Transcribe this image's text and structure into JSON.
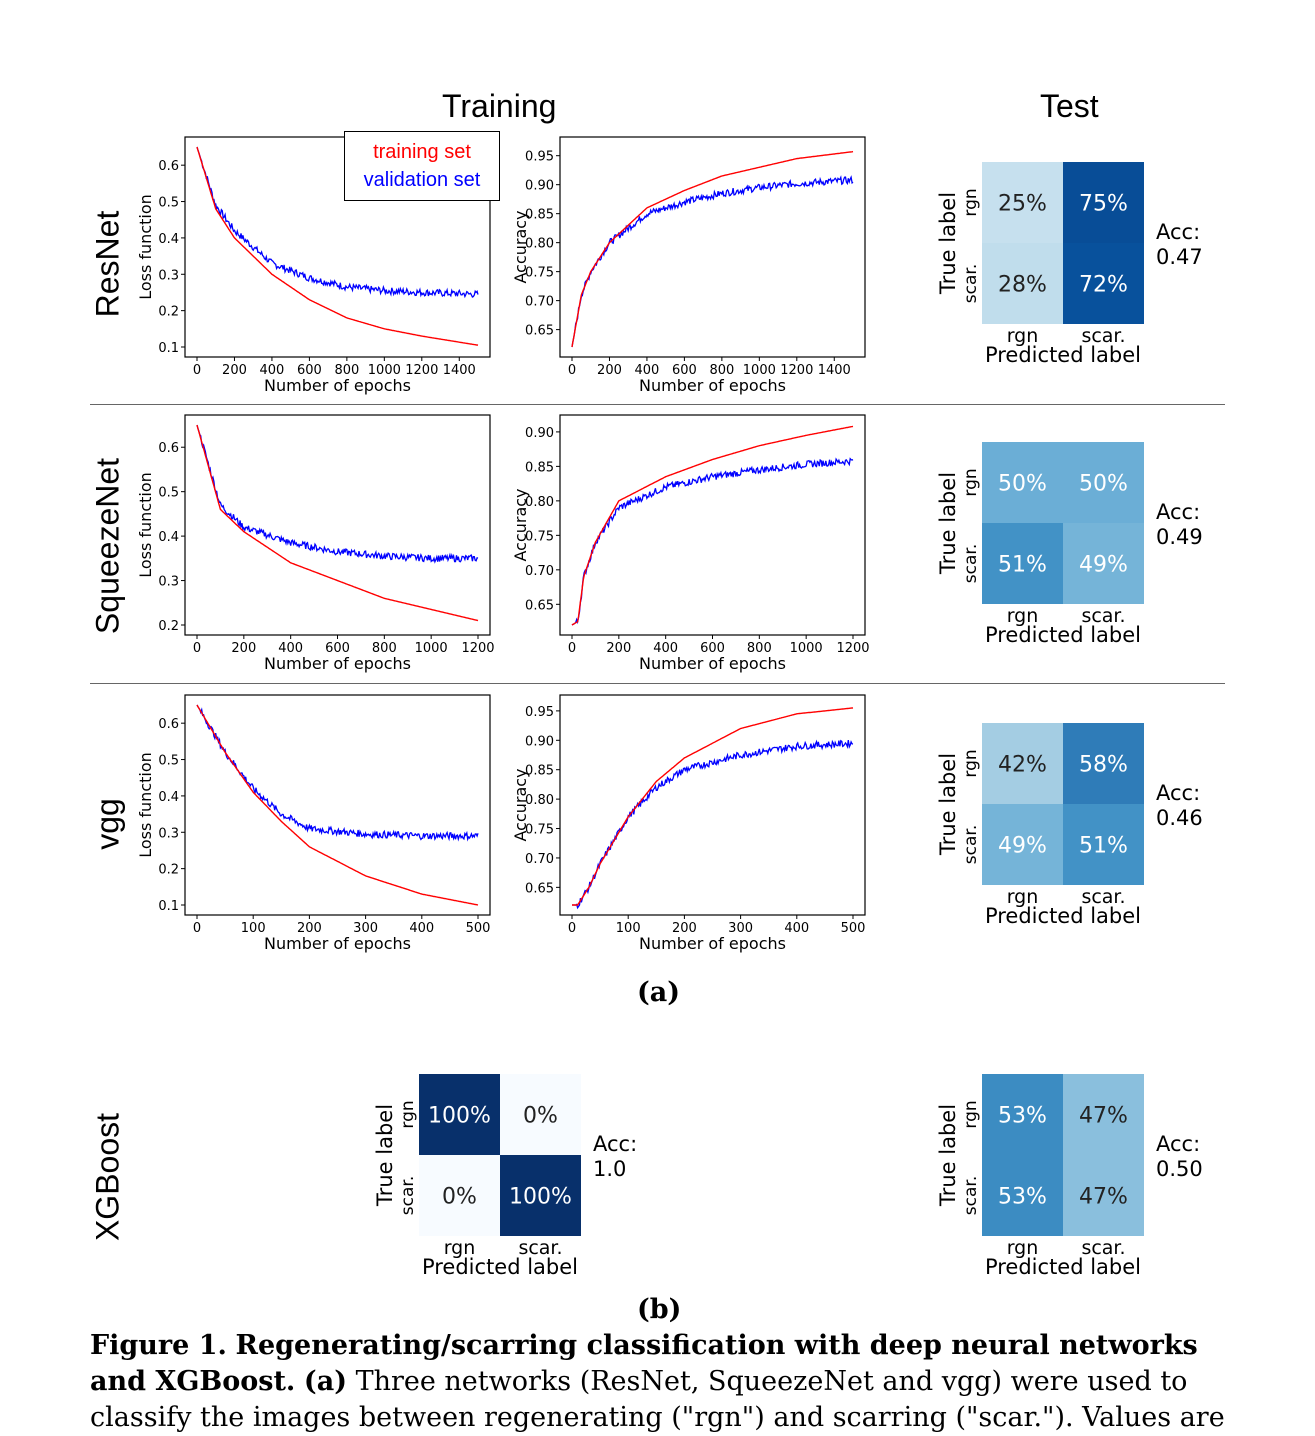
{
  "headers": {
    "training": "Training",
    "test": "Test"
  },
  "legend": {
    "training": "training set",
    "validation": "validation set"
  },
  "colors": {
    "training_line": "#ff0000",
    "validation_line": "#0000ff",
    "cm_dark": "#08306b",
    "cm_mid_dark": "#084c8a",
    "cm_mid": "#6baed6",
    "cm_medium": "#4a98c9",
    "cm_light": "#f7fbff",
    "cm_soft": "#8abfdd"
  },
  "panel_labels": {
    "a": "(a)",
    "b": "(b)"
  },
  "caption": {
    "label": "Figure 1.",
    "bold_title": "Regenerating/scarring classification with deep neural networks and XGBoost.",
    "part_a": "(a)",
    "text": "Three networks (ResNet, SqueezeNet and vgg) were used to classify the images between regenerating (\"rgn\") and scarring (\"scar.\"). Values are"
  },
  "rows": [
    {
      "model": "ResNet"
    },
    {
      "model": "SqueezeNet"
    },
    {
      "model": "vgg"
    },
    {
      "model": "XGBoost"
    }
  ],
  "chart_data": [
    {
      "id": "resnet-loss",
      "type": "line",
      "xlabel": "Number of epochs",
      "ylabel": "Loss function",
      "xticks": [
        "0",
        "200",
        "400",
        "600",
        "800",
        "1000",
        "1200",
        "1400"
      ],
      "yticks": [
        "0.1",
        "0.2",
        "0.3",
        "0.4",
        "0.5",
        "0.6"
      ],
      "xlim": [
        0,
        1500
      ],
      "ylim": [
        0.1,
        0.65
      ],
      "series": [
        {
          "name": "training set",
          "x": [
            0,
            100,
            200,
            400,
            600,
            800,
            1000,
            1200,
            1500
          ],
          "y": [
            0.65,
            0.48,
            0.4,
            0.3,
            0.23,
            0.18,
            0.15,
            0.13,
            0.105
          ]
        },
        {
          "name": "validation set",
          "x": [
            0,
            100,
            200,
            400,
            600,
            800,
            1000,
            1200,
            1500
          ],
          "y": [
            0.65,
            0.49,
            0.42,
            0.33,
            0.29,
            0.265,
            0.255,
            0.25,
            0.245
          ]
        }
      ]
    },
    {
      "id": "resnet-acc",
      "type": "line",
      "xlabel": "Number of epochs",
      "ylabel": "Accuracy",
      "xticks": [
        "0",
        "200",
        "400",
        "600",
        "800",
        "1000",
        "1200",
        "1400"
      ],
      "yticks": [
        "0.65",
        "0.70",
        "0.75",
        "0.80",
        "0.85",
        "0.90",
        "0.95"
      ],
      "xlim": [
        0,
        1500
      ],
      "ylim": [
        0.62,
        0.965
      ],
      "series": [
        {
          "name": "training set",
          "x": [
            0,
            50,
            100,
            200,
            400,
            600,
            800,
            1000,
            1200,
            1500
          ],
          "y": [
            0.62,
            0.71,
            0.75,
            0.8,
            0.86,
            0.89,
            0.915,
            0.93,
            0.945,
            0.957
          ]
        },
        {
          "name": "validation set",
          "x": [
            0,
            50,
            100,
            200,
            400,
            600,
            800,
            1000,
            1200,
            1500
          ],
          "y": [
            0.62,
            0.71,
            0.75,
            0.8,
            0.85,
            0.87,
            0.885,
            0.895,
            0.902,
            0.908
          ]
        }
      ]
    },
    {
      "id": "squeezenet-loss",
      "type": "line",
      "xlabel": "Number of epochs",
      "ylabel": "Loss function",
      "xticks": [
        "0",
        "200",
        "400",
        "600",
        "800",
        "1000",
        "1200"
      ],
      "yticks": [
        "0.2",
        "0.3",
        "0.4",
        "0.5",
        "0.6"
      ],
      "xlim": [
        0,
        1200
      ],
      "ylim": [
        0.2,
        0.65
      ],
      "series": [
        {
          "name": "training set",
          "x": [
            0,
            100,
            200,
            400,
            600,
            800,
            1000,
            1200
          ],
          "y": [
            0.65,
            0.46,
            0.41,
            0.34,
            0.3,
            0.26,
            0.235,
            0.21
          ]
        },
        {
          "name": "validation set",
          "x": [
            0,
            100,
            200,
            400,
            600,
            800,
            1000,
            1200
          ],
          "y": [
            0.65,
            0.47,
            0.42,
            0.385,
            0.365,
            0.355,
            0.35,
            0.35
          ]
        }
      ]
    },
    {
      "id": "squeezenet-acc",
      "type": "line",
      "xlabel": "Number of epochs",
      "ylabel": "Accuracy",
      "xticks": [
        "0",
        "200",
        "400",
        "600",
        "800",
        "1000",
        "1200"
      ],
      "yticks": [
        "0.65",
        "0.70",
        "0.75",
        "0.80",
        "0.85",
        "0.90"
      ],
      "xlim": [
        0,
        1200
      ],
      "ylim": [
        0.62,
        0.91
      ],
      "series": [
        {
          "name": "training set",
          "x": [
            0,
            25,
            50,
            100,
            200,
            400,
            600,
            800,
            1000,
            1200
          ],
          "y": [
            0.62,
            0.625,
            0.69,
            0.74,
            0.8,
            0.835,
            0.86,
            0.88,
            0.895,
            0.908
          ]
        },
        {
          "name": "validation set",
          "x": [
            0,
            25,
            50,
            100,
            200,
            400,
            600,
            800,
            1000,
            1200
          ],
          "y": [
            0.62,
            0.625,
            0.69,
            0.74,
            0.79,
            0.82,
            0.835,
            0.845,
            0.853,
            0.858
          ]
        }
      ]
    },
    {
      "id": "vgg-loss",
      "type": "line",
      "xlabel": "Number of epochs",
      "ylabel": "Loss function",
      "xticks": [
        "0",
        "100",
        "200",
        "300",
        "400",
        "500"
      ],
      "yticks": [
        "0.1",
        "0.2",
        "0.3",
        "0.4",
        "0.5",
        "0.6"
      ],
      "xlim": [
        0,
        500
      ],
      "ylim": [
        0.1,
        0.65
      ],
      "series": [
        {
          "name": "training set",
          "x": [
            0,
            50,
            100,
            150,
            200,
            300,
            400,
            500
          ],
          "y": [
            0.65,
            0.52,
            0.41,
            0.33,
            0.26,
            0.18,
            0.13,
            0.1
          ]
        },
        {
          "name": "validation set",
          "x": [
            0,
            50,
            100,
            150,
            200,
            300,
            400,
            500
          ],
          "y": [
            0.65,
            0.52,
            0.42,
            0.35,
            0.31,
            0.295,
            0.29,
            0.29
          ]
        }
      ]
    },
    {
      "id": "vgg-acc",
      "type": "line",
      "xlabel": "Number of epochs",
      "ylabel": "Accuracy",
      "xticks": [
        "0",
        "100",
        "200",
        "300",
        "400",
        "500"
      ],
      "yticks": [
        "0.65",
        "0.70",
        "0.75",
        "0.80",
        "0.85",
        "0.90",
        "0.95"
      ],
      "xlim": [
        0,
        500
      ],
      "ylim": [
        0.62,
        0.96
      ],
      "series": [
        {
          "name": "training set",
          "x": [
            0,
            10,
            30,
            50,
            100,
            150,
            200,
            300,
            400,
            500
          ],
          "y": [
            0.62,
            0.62,
            0.65,
            0.69,
            0.77,
            0.83,
            0.87,
            0.92,
            0.945,
            0.955
          ]
        },
        {
          "name": "validation set",
          "x": [
            0,
            10,
            30,
            50,
            100,
            150,
            200,
            300,
            400,
            500
          ],
          "y": [
            0.62,
            0.62,
            0.65,
            0.69,
            0.77,
            0.82,
            0.85,
            0.875,
            0.89,
            0.895
          ]
        }
      ]
    }
  ],
  "confusion": {
    "xlabel": "Predicted label",
    "ylabel": "True label",
    "classes": [
      "rgn",
      "scar."
    ],
    "matrices": [
      {
        "id": "resnet-test",
        "cells": [
          "25%",
          "75%",
          "28%",
          "72%"
        ],
        "acc_label": "Acc:",
        "acc": "0.47"
      },
      {
        "id": "squeezenet-test",
        "cells": [
          "50%",
          "50%",
          "51%",
          "49%"
        ],
        "acc_label": "Acc:",
        "acc": "0.49"
      },
      {
        "id": "vgg-test",
        "cells": [
          "42%",
          "58%",
          "49%",
          "51%"
        ],
        "acc_label": "Acc:",
        "acc": "0.46"
      },
      {
        "id": "xgboost-train",
        "cells": [
          "100%",
          "0%",
          "0%",
          "100%"
        ],
        "acc_label": "Acc:",
        "acc": "1.0"
      },
      {
        "id": "xgboost-test",
        "cells": [
          "53%",
          "47%",
          "53%",
          "47%"
        ],
        "acc_label": "Acc:",
        "acc": "0.50"
      }
    ]
  }
}
